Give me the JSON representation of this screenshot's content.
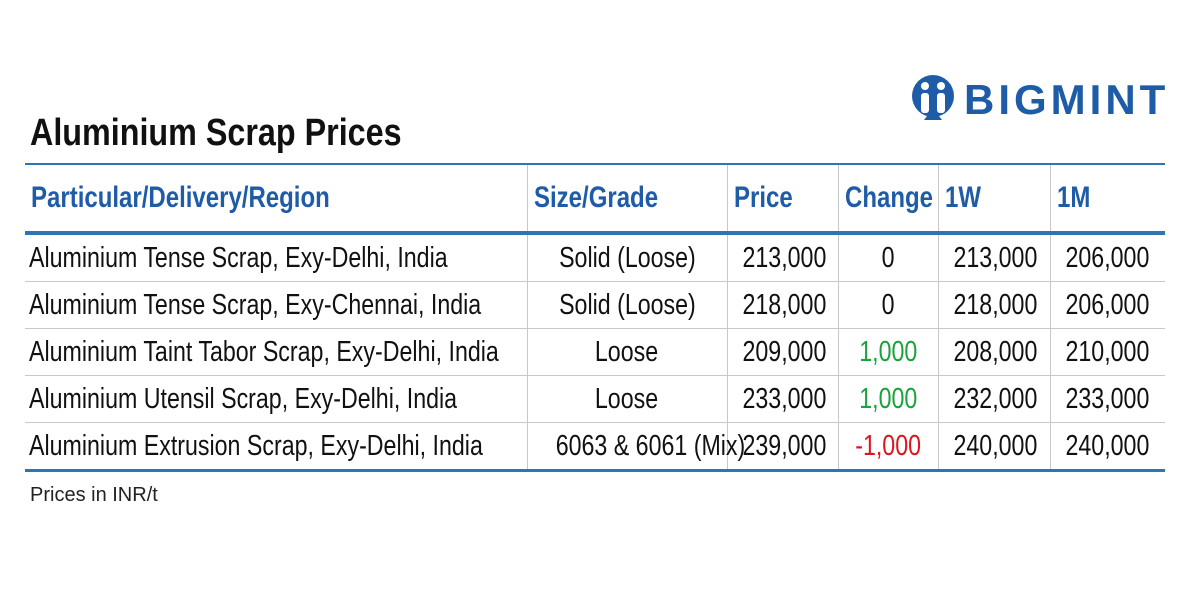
{
  "header": {
    "title": "Aluminium Scrap Prices",
    "logo": "BIGMINT"
  },
  "table": {
    "columns": [
      "Particular/Delivery/Region",
      "Size/Grade",
      "Price",
      "Change",
      "1W",
      "1M"
    ],
    "rows": [
      [
        "Aluminium Tense Scrap, Exy-Delhi, India",
        "Solid (Loose)",
        "213,000",
        "0",
        "213,000",
        "206,000"
      ],
      [
        "Aluminium Tense Scrap, Exy-Chennai, India",
        "Solid (Loose)",
        "218,000",
        "0",
        "218,000",
        "206,000"
      ],
      [
        "Aluminium Taint Tabor Scrap, Exy-Delhi, India",
        "Loose",
        "209,000",
        "1,000",
        "208,000",
        "210,000"
      ],
      [
        "Aluminium Utensil Scrap, Exy-Delhi, India",
        "Loose",
        "233,000",
        "1,000",
        "232,000",
        "233,000"
      ],
      [
        "Aluminium Extrusion Scrap, Exy-Delhi, India",
        "6063 & 6061 (Mix)",
        "239,000",
        "-1,000",
        "240,000",
        "240,000"
      ]
    ]
  },
  "footnote": "Prices in INR/t"
}
